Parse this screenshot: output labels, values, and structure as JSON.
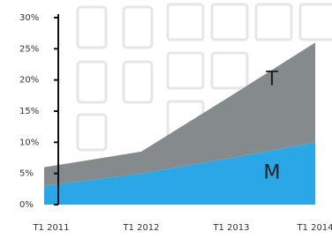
{
  "chart_data": {
    "type": "stacked_area",
    "x": [
      "T1 2011",
      "T1 2012",
      "T1 2013",
      "T1 2014"
    ],
    "series": [
      {
        "name": "M",
        "color": "#2aa7e6",
        "values": [
          3,
          5,
          7.5,
          10
        ]
      },
      {
        "name": "T",
        "color": "#858a8c",
        "values": [
          3,
          3.5,
          10,
          16
        ]
      }
    ],
    "ylim": [
      0,
      30
    ],
    "yticks": [
      {
        "value": 0,
        "label": "0%"
      },
      {
        "value": 5,
        "label": "5%"
      },
      {
        "value": 10,
        "label": "10%"
      },
      {
        "value": 15,
        "label": "15%"
      },
      {
        "value": 20,
        "label": "20%"
      },
      {
        "value": 25,
        "label": "25%"
      },
      {
        "value": 30,
        "label": "30%"
      }
    ]
  }
}
